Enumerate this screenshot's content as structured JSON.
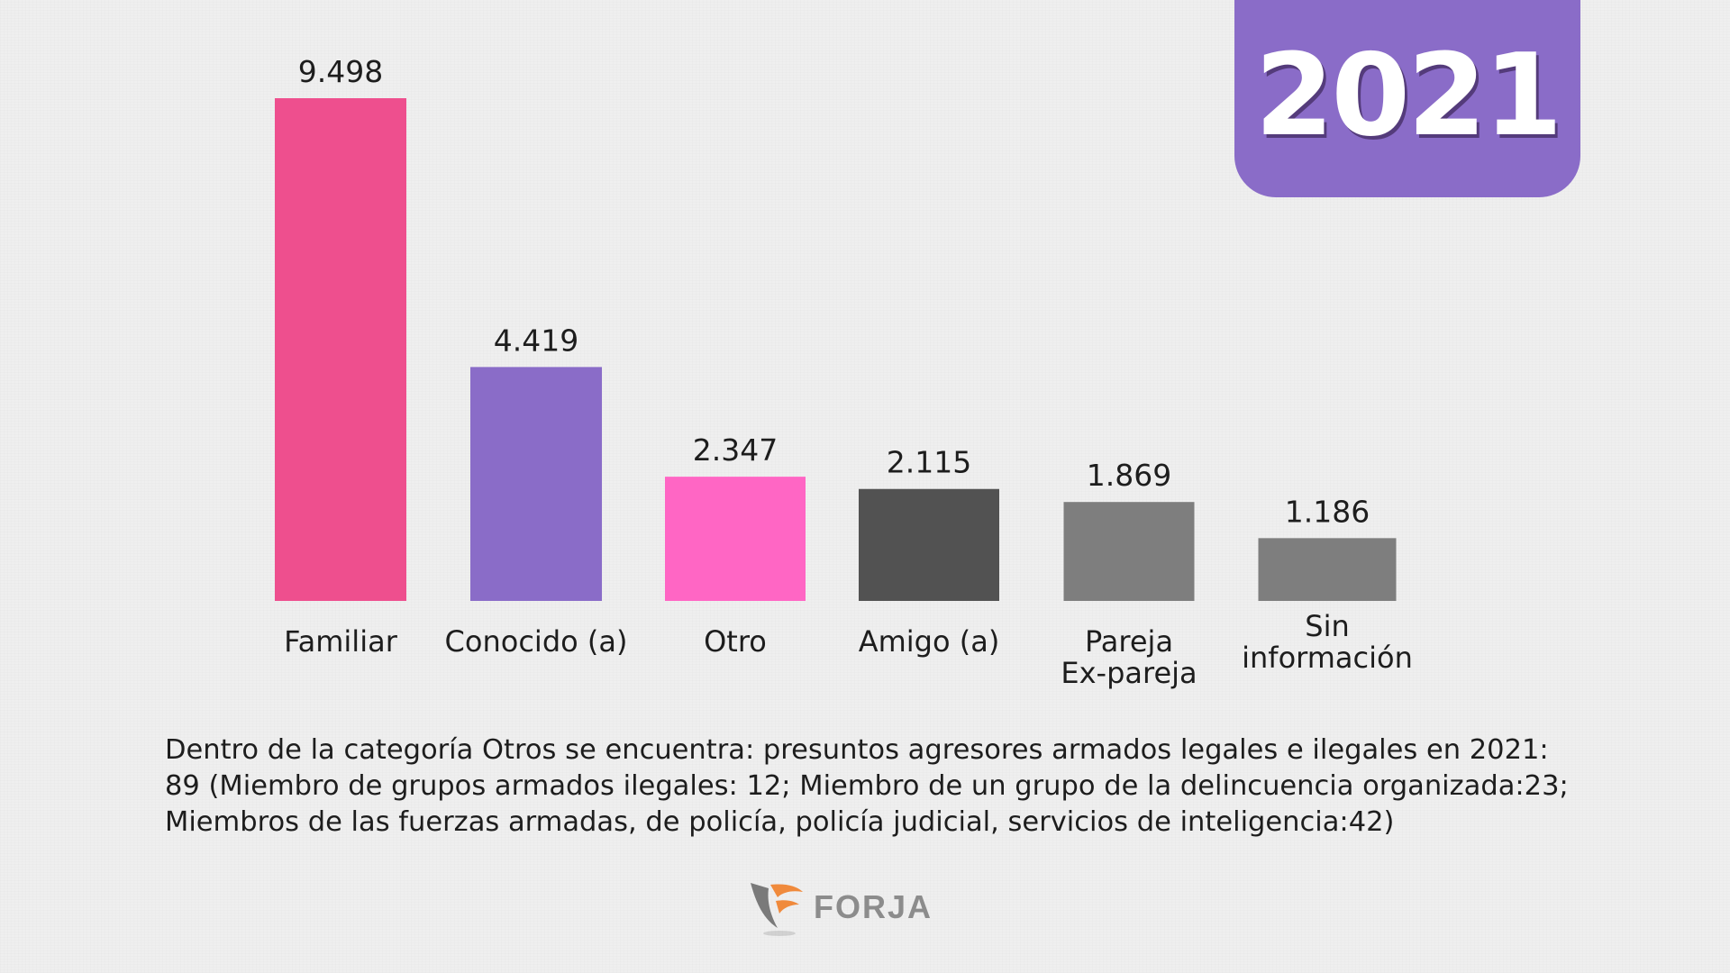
{
  "year_badge": {
    "label": "2021",
    "color": "#8a6cc8"
  },
  "chart_data": {
    "type": "bar",
    "categories": [
      "Familiar",
      "Conocido (a)",
      "Otro",
      "Amigo (a)",
      "Pareja\nEx-pareja",
      "Sin\ninformación"
    ],
    "values": [
      9498,
      4419,
      2347,
      2115,
      1869,
      1186
    ],
    "value_labels": [
      "9.498",
      "4.419",
      "2.347",
      "2.115",
      "1.869",
      "1.186"
    ],
    "colors": [
      "#ee4f8e",
      "#8a6cc8",
      "#ff66c4",
      "#525252",
      "#7e7e7e",
      "#7e7e7e"
    ],
    "title": "",
    "xlabel": "",
    "ylabel": "",
    "grid": false,
    "legend": "none"
  },
  "note": "Dentro de la categoría Otros se encuentra: presuntos agresores armados legales e ilegales en 2021: 89 (Miembro de grupos armados ilegales: 12; Miembro de un grupo de la delincuencia organizada:23; Miembros de las fuerzas armadas, de policía, policía judicial, servicios de inteligencia:42)",
  "logo": {
    "name": "forja-logo",
    "text": "FORJA",
    "colors": [
      "#8a8a8a",
      "#f08a3c"
    ]
  }
}
